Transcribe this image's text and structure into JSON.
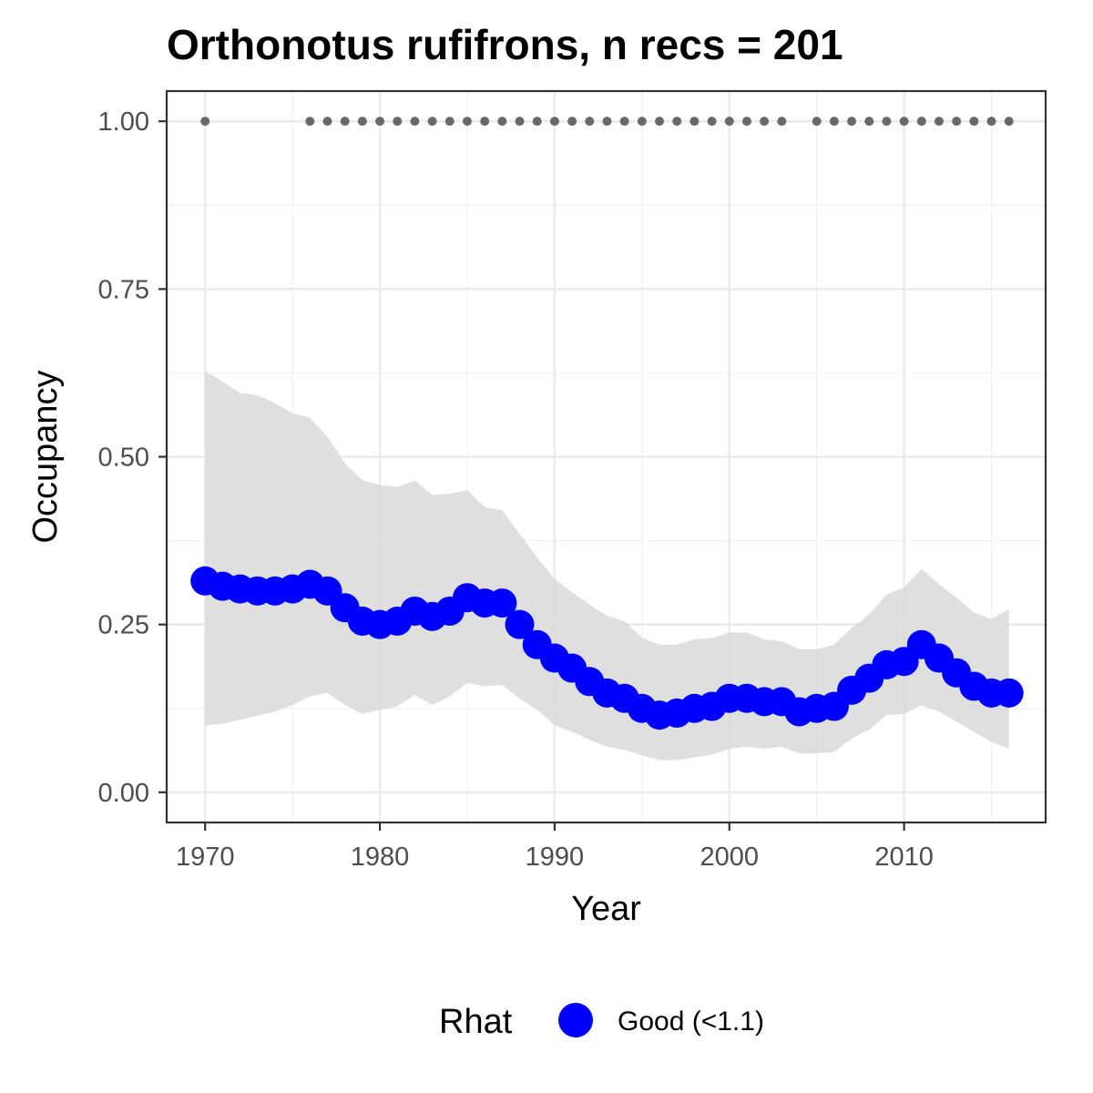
{
  "chart_data": {
    "type": "line",
    "title": "Orthonotus rufifrons, n recs = 201",
    "xlabel": "Year",
    "ylabel": "Occupancy",
    "xlim": [
      1967.8,
      2018.1
    ],
    "ylim": [
      -0.045,
      1.045
    ],
    "x_ticks": [
      1970,
      1980,
      1990,
      2000,
      2010
    ],
    "x_tick_labels": [
      "1970",
      "1980",
      "1990",
      "2000",
      "2010"
    ],
    "y_ticks": [
      0,
      0.25,
      0.5,
      0.75,
      1.0
    ],
    "y_tick_labels": [
      "0.00",
      "0.25",
      "0.50",
      "0.75",
      "1.00"
    ],
    "grid": true,
    "years": [
      1970,
      1971,
      1972,
      1973,
      1974,
      1975,
      1976,
      1977,
      1978,
      1979,
      1980,
      1981,
      1982,
      1983,
      1984,
      1985,
      1986,
      1987,
      1988,
      1989,
      1990,
      1991,
      1992,
      1993,
      1994,
      1995,
      1996,
      1997,
      1998,
      1999,
      2000,
      2001,
      2002,
      2003,
      2004,
      2005,
      2006,
      2007,
      2008,
      2009,
      2010,
      2011,
      2012,
      2013,
      2014,
      2015,
      2016
    ],
    "series": [
      {
        "name": "Good (<1.1)",
        "type": "line_points",
        "color": "#0000ff",
        "values": [
          0.315,
          0.307,
          0.303,
          0.3,
          0.3,
          0.303,
          0.31,
          0.3,
          0.275,
          0.255,
          0.25,
          0.255,
          0.27,
          0.262,
          0.27,
          0.29,
          0.282,
          0.282,
          0.25,
          0.22,
          0.2,
          0.185,
          0.165,
          0.148,
          0.14,
          0.125,
          0.115,
          0.118,
          0.125,
          0.128,
          0.14,
          0.14,
          0.135,
          0.135,
          0.12,
          0.125,
          0.128,
          0.152,
          0.17,
          0.19,
          0.195,
          0.22,
          0.2,
          0.178,
          0.158,
          0.148,
          0.148
        ]
      }
    ],
    "ribbon": {
      "color": "#d9d9d9",
      "lower": [
        0.1,
        0.102,
        0.108,
        0.114,
        0.12,
        0.13,
        0.143,
        0.148,
        0.13,
        0.117,
        0.123,
        0.128,
        0.145,
        0.13,
        0.143,
        0.163,
        0.158,
        0.16,
        0.14,
        0.123,
        0.1,
        0.09,
        0.078,
        0.068,
        0.063,
        0.055,
        0.048,
        0.048,
        0.052,
        0.056,
        0.065,
        0.068,
        0.065,
        0.068,
        0.058,
        0.058,
        0.06,
        0.08,
        0.093,
        0.115,
        0.117,
        0.13,
        0.12,
        0.105,
        0.09,
        0.075,
        0.065
      ],
      "upper": [
        0.628,
        0.612,
        0.595,
        0.592,
        0.58,
        0.565,
        0.558,
        0.53,
        0.49,
        0.465,
        0.458,
        0.455,
        0.465,
        0.443,
        0.445,
        0.45,
        0.425,
        0.42,
        0.385,
        0.35,
        0.318,
        0.298,
        0.28,
        0.263,
        0.255,
        0.23,
        0.22,
        0.22,
        0.228,
        0.23,
        0.238,
        0.238,
        0.228,
        0.225,
        0.213,
        0.213,
        0.22,
        0.245,
        0.265,
        0.295,
        0.305,
        0.333,
        0.31,
        0.29,
        0.268,
        0.258,
        0.273
      ]
    },
    "record_years": [
      1970,
      1976,
      1977,
      1978,
      1979,
      1980,
      1981,
      1982,
      1983,
      1984,
      1985,
      1986,
      1987,
      1988,
      1989,
      1990,
      1991,
      1992,
      1993,
      1994,
      1995,
      1996,
      1997,
      1998,
      1999,
      2000,
      2001,
      2002,
      2003,
      2005,
      2006,
      2007,
      2008,
      2009,
      2010,
      2011,
      2012,
      2013,
      2014,
      2015,
      2016
    ],
    "record_value": 1.0,
    "record_color": "#696969",
    "legend": {
      "title": "Rhat",
      "position": "bottom",
      "items": [
        {
          "label": "Good (<1.1)",
          "color": "#0000ff"
        }
      ]
    }
  }
}
